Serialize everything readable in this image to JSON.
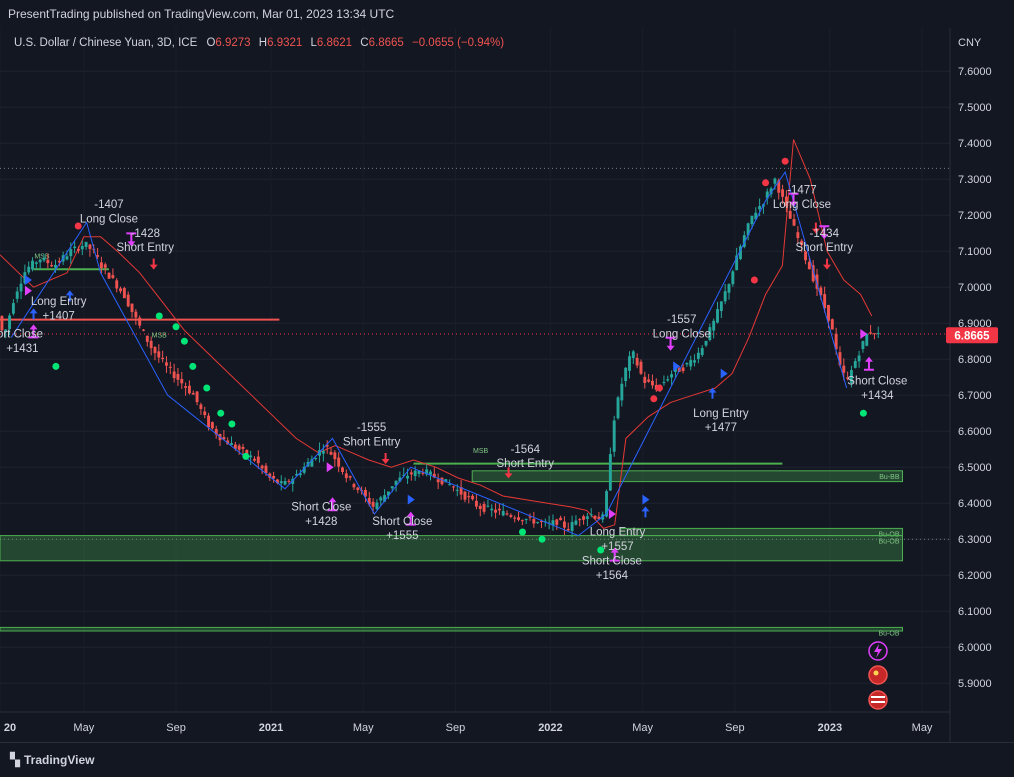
{
  "header": {
    "published": "PresentTrading published on TradingView.com, Mar 01, 2023 13:34 UTC"
  },
  "legend": {
    "symbol": "U.S. Dollar / Chinese Yuan, 3D, ICE",
    "o_label": "O",
    "o": "6.9273",
    "h_label": "H",
    "h": "6.9321",
    "l_label": "L",
    "l": "6.8621",
    "c_label": "C",
    "c": "6.8665",
    "change": "−0.0655 (−0.94%)"
  },
  "footer": {
    "brand": "TradingView"
  },
  "colors": {
    "background": "#131722",
    "up": "#26a69a",
    "down": "#ef5350",
    "price_label": "#f23645",
    "trend": "#2962ff",
    "stop": "#e53935",
    "zone": "#4caf50",
    "signal": "#e040fb"
  },
  "chart_data": {
    "type": "candlestick",
    "currency": "CNY",
    "last_price": "6.8665",
    "y_ticks": [
      "7.6000",
      "7.5000",
      "7.4000",
      "7.3000",
      "7.2000",
      "7.1000",
      "7.0000",
      "6.9000",
      "6.8000",
      "6.7000",
      "6.6000",
      "6.5000",
      "6.4000",
      "6.3000",
      "6.2000",
      "6.1000",
      "6.0000",
      "5.9000"
    ],
    "y_tick_values": [
      7.6,
      7.5,
      7.4,
      7.3,
      7.2,
      7.1,
      7.0,
      6.9,
      6.8,
      6.7,
      6.6,
      6.5,
      6.4,
      6.3,
      6.2,
      6.1,
      6.0,
      5.9
    ],
    "ylim": [
      5.82,
      7.72
    ],
    "x_ticks": [
      {
        "label": "20",
        "t": 0.0
      },
      {
        "label": "May",
        "t": 0.3
      },
      {
        "label": "Sep",
        "t": 0.63
      },
      {
        "label": "2021",
        "t": 0.97
      },
      {
        "label": "May",
        "t": 1.3
      },
      {
        "label": "Sep",
        "t": 1.63
      },
      {
        "label": "2022",
        "t": 1.97
      },
      {
        "label": "May",
        "t": 2.3
      },
      {
        "label": "Sep",
        "t": 2.63
      },
      {
        "label": "2023",
        "t": 2.97
      },
      {
        "label": "May",
        "t": 3.3
      }
    ],
    "xlim": [
      0.0,
      3.4
    ],
    "price_path": [
      [
        0.0,
        6.92
      ],
      [
        0.02,
        6.86
      ],
      [
        0.06,
        6.98
      ],
      [
        0.1,
        7.05
      ],
      [
        0.15,
        7.08
      ],
      [
        0.2,
        7.06
      ],
      [
        0.26,
        7.1
      ],
      [
        0.31,
        7.12
      ],
      [
        0.34,
        7.1
      ],
      [
        0.37,
        7.06
      ],
      [
        0.41,
        7.02
      ],
      [
        0.45,
        6.98
      ],
      [
        0.5,
        6.9
      ],
      [
        0.55,
        6.83
      ],
      [
        0.6,
        6.78
      ],
      [
        0.65,
        6.74
      ],
      [
        0.7,
        6.7
      ],
      [
        0.75,
        6.62
      ],
      [
        0.8,
        6.58
      ],
      [
        0.86,
        6.55
      ],
      [
        0.92,
        6.52
      ],
      [
        0.97,
        6.47
      ],
      [
        1.02,
        6.45
      ],
      [
        1.07,
        6.48
      ],
      [
        1.12,
        6.52
      ],
      [
        1.17,
        6.56
      ],
      [
        1.21,
        6.52
      ],
      [
        1.25,
        6.47
      ],
      [
        1.3,
        6.43
      ],
      [
        1.34,
        6.39
      ],
      [
        1.38,
        6.42
      ],
      [
        1.42,
        6.46
      ],
      [
        1.47,
        6.48
      ],
      [
        1.52,
        6.49
      ],
      [
        1.57,
        6.47
      ],
      [
        1.62,
        6.45
      ],
      [
        1.67,
        6.42
      ],
      [
        1.72,
        6.39
      ],
      [
        1.77,
        6.38
      ],
      [
        1.82,
        6.37
      ],
      [
        1.87,
        6.36
      ],
      [
        1.92,
        6.35
      ],
      [
        1.97,
        6.34
      ],
      [
        2.0,
        6.35
      ],
      [
        2.04,
        6.33
      ],
      [
        2.08,
        6.36
      ],
      [
        2.12,
        6.37
      ],
      [
        2.15,
        6.36
      ],
      [
        2.17,
        6.36
      ],
      [
        2.2,
        6.62
      ],
      [
        2.24,
        6.76
      ],
      [
        2.27,
        6.82
      ],
      [
        2.31,
        6.74
      ],
      [
        2.36,
        6.72
      ],
      [
        2.41,
        6.76
      ],
      [
        2.46,
        6.78
      ],
      [
        2.51,
        6.82
      ],
      [
        2.56,
        6.9
      ],
      [
        2.61,
        7.0
      ],
      [
        2.66,
        7.12
      ],
      [
        2.7,
        7.2
      ],
      [
        2.74,
        7.24
      ],
      [
        2.78,
        7.3
      ],
      [
        2.82,
        7.22
      ],
      [
        2.86,
        7.14
      ],
      [
        2.9,
        7.06
      ],
      [
        2.94,
        6.98
      ],
      [
        2.98,
        6.9
      ],
      [
        3.01,
        6.78
      ],
      [
        3.04,
        6.74
      ],
      [
        3.07,
        6.8
      ],
      [
        3.11,
        6.87
      ],
      [
        3.13,
        6.88
      ],
      [
        3.15,
        6.8665
      ]
    ],
    "stop_path": [
      [
        0.0,
        7.09
      ],
      [
        0.12,
        7.0
      ],
      [
        0.18,
        7.02
      ],
      [
        0.24,
        7.04
      ],
      [
        0.3,
        7.14
      ],
      [
        0.36,
        7.14
      ],
      [
        0.42,
        7.1
      ],
      [
        0.5,
        7.04
      ],
      [
        0.58,
        6.96
      ],
      [
        0.66,
        6.88
      ],
      [
        0.74,
        6.82
      ],
      [
        0.82,
        6.76
      ],
      [
        0.9,
        6.7
      ],
      [
        0.98,
        6.64
      ],
      [
        1.06,
        6.58
      ],
      [
        1.14,
        6.54
      ],
      [
        1.2,
        6.56
      ],
      [
        1.26,
        6.54
      ],
      [
        1.32,
        6.52
      ],
      [
        1.4,
        6.5
      ],
      [
        1.48,
        6.52
      ],
      [
        1.56,
        6.5
      ],
      [
        1.64,
        6.47
      ],
      [
        1.72,
        6.45
      ],
      [
        1.8,
        6.42
      ],
      [
        1.88,
        6.41
      ],
      [
        1.96,
        6.4
      ],
      [
        2.04,
        6.39
      ],
      [
        2.1,
        6.38
      ],
      [
        2.16,
        6.33
      ],
      [
        2.2,
        6.34
      ],
      [
        2.24,
        6.58
      ],
      [
        2.32,
        6.64
      ],
      [
        2.4,
        6.68
      ],
      [
        2.48,
        6.7
      ],
      [
        2.56,
        6.72
      ],
      [
        2.62,
        6.76
      ],
      [
        2.68,
        6.86
      ],
      [
        2.74,
        6.98
      ],
      [
        2.8,
        7.06
      ],
      [
        2.84,
        7.41
      ],
      [
        2.9,
        7.3
      ],
      [
        2.96,
        7.1
      ],
      [
        3.02,
        7.02
      ],
      [
        3.08,
        6.98
      ],
      [
        3.12,
        6.92
      ]
    ],
    "trend_path": [
      [
        0.04,
        6.86
      ],
      [
        0.31,
        7.18
      ],
      [
        0.36,
        7.04
      ],
      [
        0.6,
        6.7
      ],
      [
        1.02,
        6.44
      ],
      [
        1.19,
        6.58
      ],
      [
        1.34,
        6.37
      ],
      [
        1.47,
        6.5
      ],
      [
        2.07,
        6.31
      ],
      [
        2.17,
        6.37
      ],
      [
        2.74,
        7.24
      ],
      [
        2.81,
        7.32
      ],
      [
        3.03,
        6.72
      ]
    ],
    "horizontal_levels": [
      {
        "value": 7.33,
        "style": "dotted",
        "color": "#787b86",
        "t0": 0.0,
        "t1": 3.4
      },
      {
        "value": 6.87,
        "style": "dotted",
        "color": "#f23645",
        "t0": 0.0,
        "t1": 3.4
      },
      {
        "value": 6.3,
        "style": "dotted",
        "color": "#787b86",
        "t0": 0.0,
        "t1": 3.4
      },
      {
        "value": 6.91,
        "style": "solid",
        "color": "#ef5350",
        "t0": 0.0,
        "t1": 1.0
      },
      {
        "value": 7.05,
        "style": "solid",
        "color": "#4caf50",
        "t0": 0.12,
        "t1": 0.39
      },
      {
        "value": 6.51,
        "style": "solid",
        "color": "#4caf50",
        "t0": 1.48,
        "t1": 2.8
      }
    ],
    "zones": [
      {
        "top": 6.49,
        "bottom": 6.46,
        "t0": 1.69,
        "t1": 3.23,
        "label": "Bu-BB"
      },
      {
        "top": 6.33,
        "bottom": 6.31,
        "t0": 2.22,
        "t1": 3.23,
        "label": "Bu-OB"
      },
      {
        "top": 6.31,
        "bottom": 6.24,
        "t0": 0.0,
        "t1": 3.23,
        "label": "Bu-OB"
      },
      {
        "top": 6.055,
        "bottom": 6.045,
        "t0": 0.0,
        "t1": 3.23,
        "label": "Bu-OB"
      }
    ],
    "zone_labels": {
      "msb_1": "MSB",
      "msb_2": "MSB",
      "msb_3": "MSB"
    },
    "annotations": [
      {
        "t": 0.39,
        "price": 7.22,
        "text": "-1407"
      },
      {
        "t": 0.39,
        "price": 7.18,
        "text": "Long Close"
      },
      {
        "t": 0.52,
        "price": 7.14,
        "text": "-1428"
      },
      {
        "t": 0.52,
        "price": 7.1,
        "text": "Short Entry"
      },
      {
        "t": 0.21,
        "price": 6.95,
        "text": "Long Entry"
      },
      {
        "t": 0.21,
        "price": 6.91,
        "text": "+1407"
      },
      {
        "t": 0.06,
        "price": 6.86,
        "text": "hort Close"
      },
      {
        "t": 0.08,
        "price": 6.82,
        "text": "+1431"
      },
      {
        "t": 1.33,
        "price": 6.6,
        "text": "-1555"
      },
      {
        "t": 1.33,
        "price": 6.56,
        "text": "Short Entry"
      },
      {
        "t": 1.15,
        "price": 6.38,
        "text": "Short Close"
      },
      {
        "t": 1.15,
        "price": 6.34,
        "text": "+1428"
      },
      {
        "t": 1.44,
        "price": 6.34,
        "text": "Short Close"
      },
      {
        "t": 1.44,
        "price": 6.3,
        "text": "+1555"
      },
      {
        "t": 1.88,
        "price": 6.54,
        "text": "-1564"
      },
      {
        "t": 1.88,
        "price": 6.5,
        "text": "Short Entry"
      },
      {
        "t": 2.21,
        "price": 6.31,
        "text": "Long Entry"
      },
      {
        "t": 2.21,
        "price": 6.27,
        "text": "+1557"
      },
      {
        "t": 2.19,
        "price": 6.23,
        "text": "Short Close"
      },
      {
        "t": 2.19,
        "price": 6.19,
        "text": "+1564"
      },
      {
        "t": 2.44,
        "price": 6.9,
        "text": "-1557"
      },
      {
        "t": 2.44,
        "price": 6.86,
        "text": "Long Close"
      },
      {
        "t": 2.58,
        "price": 6.64,
        "text": "Long Entry"
      },
      {
        "t": 2.58,
        "price": 6.6,
        "text": "+1477"
      },
      {
        "t": 2.87,
        "price": 7.26,
        "text": "-1477"
      },
      {
        "t": 2.87,
        "price": 7.22,
        "text": "Long Close"
      },
      {
        "t": 2.95,
        "price": 7.14,
        "text": "-1434"
      },
      {
        "t": 2.95,
        "price": 7.1,
        "text": "Short Entry"
      },
      {
        "t": 3.14,
        "price": 6.73,
        "text": "Short Close"
      },
      {
        "t": 3.14,
        "price": 6.69,
        "text": "+1434"
      }
    ],
    "markers": [
      {
        "t": 0.2,
        "price": 6.78,
        "shape": "dot",
        "color": "#00e676"
      },
      {
        "t": 0.57,
        "price": 6.92,
        "shape": "dot",
        "color": "#00e676"
      },
      {
        "t": 0.63,
        "price": 6.89,
        "shape": "dot",
        "color": "#00e676"
      },
      {
        "t": 0.66,
        "price": 6.85,
        "shape": "dot",
        "color": "#00e676"
      },
      {
        "t": 0.69,
        "price": 6.78,
        "shape": "dot",
        "color": "#00e676"
      },
      {
        "t": 0.74,
        "price": 6.72,
        "shape": "dot",
        "color": "#00e676"
      },
      {
        "t": 0.79,
        "price": 6.65,
        "shape": "dot",
        "color": "#00e676"
      },
      {
        "t": 0.83,
        "price": 6.62,
        "shape": "dot",
        "color": "#00e676"
      },
      {
        "t": 0.88,
        "price": 6.53,
        "shape": "dot",
        "color": "#00e676"
      },
      {
        "t": 1.87,
        "price": 6.32,
        "shape": "dot",
        "color": "#00e676"
      },
      {
        "t": 1.94,
        "price": 6.3,
        "shape": "dot",
        "color": "#00e676"
      },
      {
        "t": 2.15,
        "price": 6.27,
        "shape": "dot",
        "color": "#00e676"
      },
      {
        "t": 3.09,
        "price": 6.65,
        "shape": "dot",
        "color": "#00e676"
      },
      {
        "t": 0.28,
        "price": 7.17,
        "shape": "dot",
        "color": "#f23645"
      },
      {
        "t": 2.34,
        "price": 6.69,
        "shape": "dot",
        "color": "#f23645"
      },
      {
        "t": 2.36,
        "price": 6.72,
        "shape": "dot",
        "color": "#f23645"
      },
      {
        "t": 2.7,
        "price": 7.02,
        "shape": "dot",
        "color": "#f23645"
      },
      {
        "t": 2.74,
        "price": 7.29,
        "shape": "dot",
        "color": "#f23645"
      },
      {
        "t": 2.81,
        "price": 7.35,
        "shape": "dot",
        "color": "#f23645"
      },
      {
        "t": 0.55,
        "price": 7.06,
        "shape": "arrow-down",
        "color": "#f23645"
      },
      {
        "t": 1.38,
        "price": 6.52,
        "shape": "arrow-down",
        "color": "#f23645"
      },
      {
        "t": 1.82,
        "price": 6.48,
        "shape": "arrow-down",
        "color": "#f23645"
      },
      {
        "t": 2.92,
        "price": 7.16,
        "shape": "arrow-down",
        "color": "#f23645"
      },
      {
        "t": 2.96,
        "price": 7.06,
        "shape": "arrow-down",
        "color": "#f23645"
      },
      {
        "t": 0.12,
        "price": 6.93,
        "shape": "arrow-up",
        "color": "#2962ff"
      },
      {
        "t": 0.25,
        "price": 6.98,
        "shape": "arrow-up",
        "color": "#2962ff"
      },
      {
        "t": 2.31,
        "price": 6.38,
        "shape": "arrow-up",
        "color": "#2962ff"
      },
      {
        "t": 2.55,
        "price": 6.71,
        "shape": "arrow-up",
        "color": "#2962ff"
      },
      {
        "t": 0.47,
        "price": 7.13,
        "shape": "signal-down",
        "color": "#e040fb"
      },
      {
        "t": 2.84,
        "price": 7.24,
        "shape": "signal-down",
        "color": "#e040fb"
      },
      {
        "t": 2.95,
        "price": 7.15,
        "shape": "signal-down",
        "color": "#e040fb"
      },
      {
        "t": 2.4,
        "price": 6.84,
        "shape": "signal-down",
        "color": "#e040fb"
      },
      {
        "t": 0.12,
        "price": 6.88,
        "shape": "signal-up",
        "color": "#e040fb"
      },
      {
        "t": 1.19,
        "price": 6.4,
        "shape": "signal-up",
        "color": "#e040fb"
      },
      {
        "t": 1.47,
        "price": 6.36,
        "shape": "signal-up",
        "color": "#e040fb"
      },
      {
        "t": 2.2,
        "price": 6.26,
        "shape": "signal-up",
        "color": "#e040fb"
      },
      {
        "t": 3.11,
        "price": 6.79,
        "shape": "signal-up",
        "color": "#e040fb"
      },
      {
        "t": 0.1,
        "price": 6.99,
        "shape": "tri-right",
        "color": "#e040fb"
      },
      {
        "t": 1.18,
        "price": 6.5,
        "shape": "tri-right",
        "color": "#e040fb"
      },
      {
        "t": 2.19,
        "price": 6.37,
        "shape": "tri-right",
        "color": "#e040fb"
      },
      {
        "t": 3.09,
        "price": 6.87,
        "shape": "tri-right",
        "color": "#e040fb"
      },
      {
        "t": 0.1,
        "price": 7.02,
        "shape": "tri-right",
        "color": "#2962ff"
      },
      {
        "t": 1.47,
        "price": 6.41,
        "shape": "tri-right",
        "color": "#2962ff"
      },
      {
        "t": 2.31,
        "price": 6.41,
        "shape": "tri-right",
        "color": "#2962ff"
      },
      {
        "t": 2.42,
        "price": 6.78,
        "shape": "tri-right",
        "color": "#2962ff"
      },
      {
        "t": 2.59,
        "price": 6.76,
        "shape": "tri-right",
        "color": "#2962ff"
      }
    ]
  }
}
